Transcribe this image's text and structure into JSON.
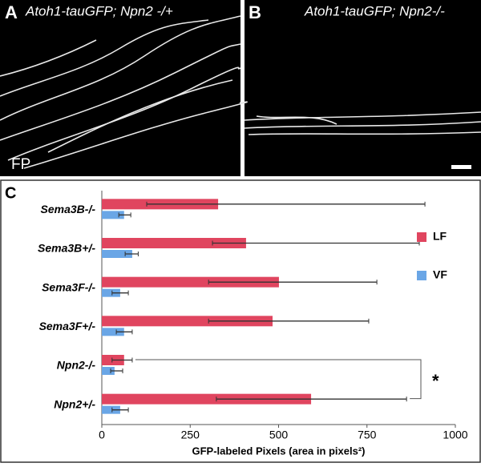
{
  "panel_a": {
    "letter": "A",
    "label": "Atoh1-tauGFP; Npn2 -/+",
    "region": "FP"
  },
  "panel_b": {
    "letter": "B",
    "label": "Atoh1-tauGFP; Npn2-/-"
  },
  "chart_data": {
    "type": "hbar",
    "panel": "C",
    "categories": [
      "Sema3B-/-",
      "Sema3B+/-",
      "Sema3F-/-",
      "Sema3F+/-",
      "Npn2-/-",
      "Npn2+/-"
    ],
    "series": [
      {
        "name": "LF",
        "color": "#e0455f",
        "values": [
          329,
          408,
          501,
          483,
          63,
          592
        ],
        "errors_minus": [
          202,
          95,
          199,
          181,
          34,
          268
        ],
        "errors_plus": [
          585,
          490,
          277,
          272,
          23,
          270
        ]
      },
      {
        "name": "VF",
        "color": "#6aa6e6",
        "values": [
          63,
          86,
          52,
          63,
          36,
          52
        ],
        "errors_minus": [
          15,
          20,
          23,
          22,
          11,
          23
        ],
        "errors_plus": [
          19,
          17,
          23,
          23,
          23,
          23
        ]
      }
    ],
    "xlabel": "GFP-labeled Pixels (area in pixels²)",
    "xlim": [
      0,
      1000
    ],
    "xticks": [
      0,
      250,
      500,
      750,
      1000
    ],
    "annotations": [
      "*"
    ]
  }
}
